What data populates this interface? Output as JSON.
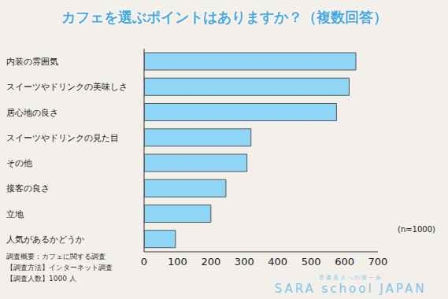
{
  "chart_data": {
    "type": "bar",
    "orientation": "horizontal",
    "title": "カフェを選ぶポイントはありますか？（複数回答）",
    "categories": [
      "内装の雰囲気",
      "スイーツやドリンクの美味しさ",
      "居心地の良さ",
      "スイーツやドリンクの見た目",
      "その他",
      "接客の良さ",
      "立地",
      "人気があるかどうか"
    ],
    "values": [
      634,
      614,
      576,
      320,
      308,
      245,
      200,
      94
    ],
    "color": "#8fd6f6",
    "xlim": [
      0,
      700
    ],
    "xticks": [
      0,
      100,
      200,
      300,
      400,
      500,
      600,
      700
    ],
    "grid": false,
    "annotations": [
      "(n=1000)"
    ],
    "notes": [
      "調査概要：カフェに関する調査",
      "【調査方法】インターネット調査",
      "【調査人数】1000 人"
    ]
  },
  "footer": {
    "tagline": "音楽美人への第一歩",
    "logo": "SARA school JAPAN"
  }
}
